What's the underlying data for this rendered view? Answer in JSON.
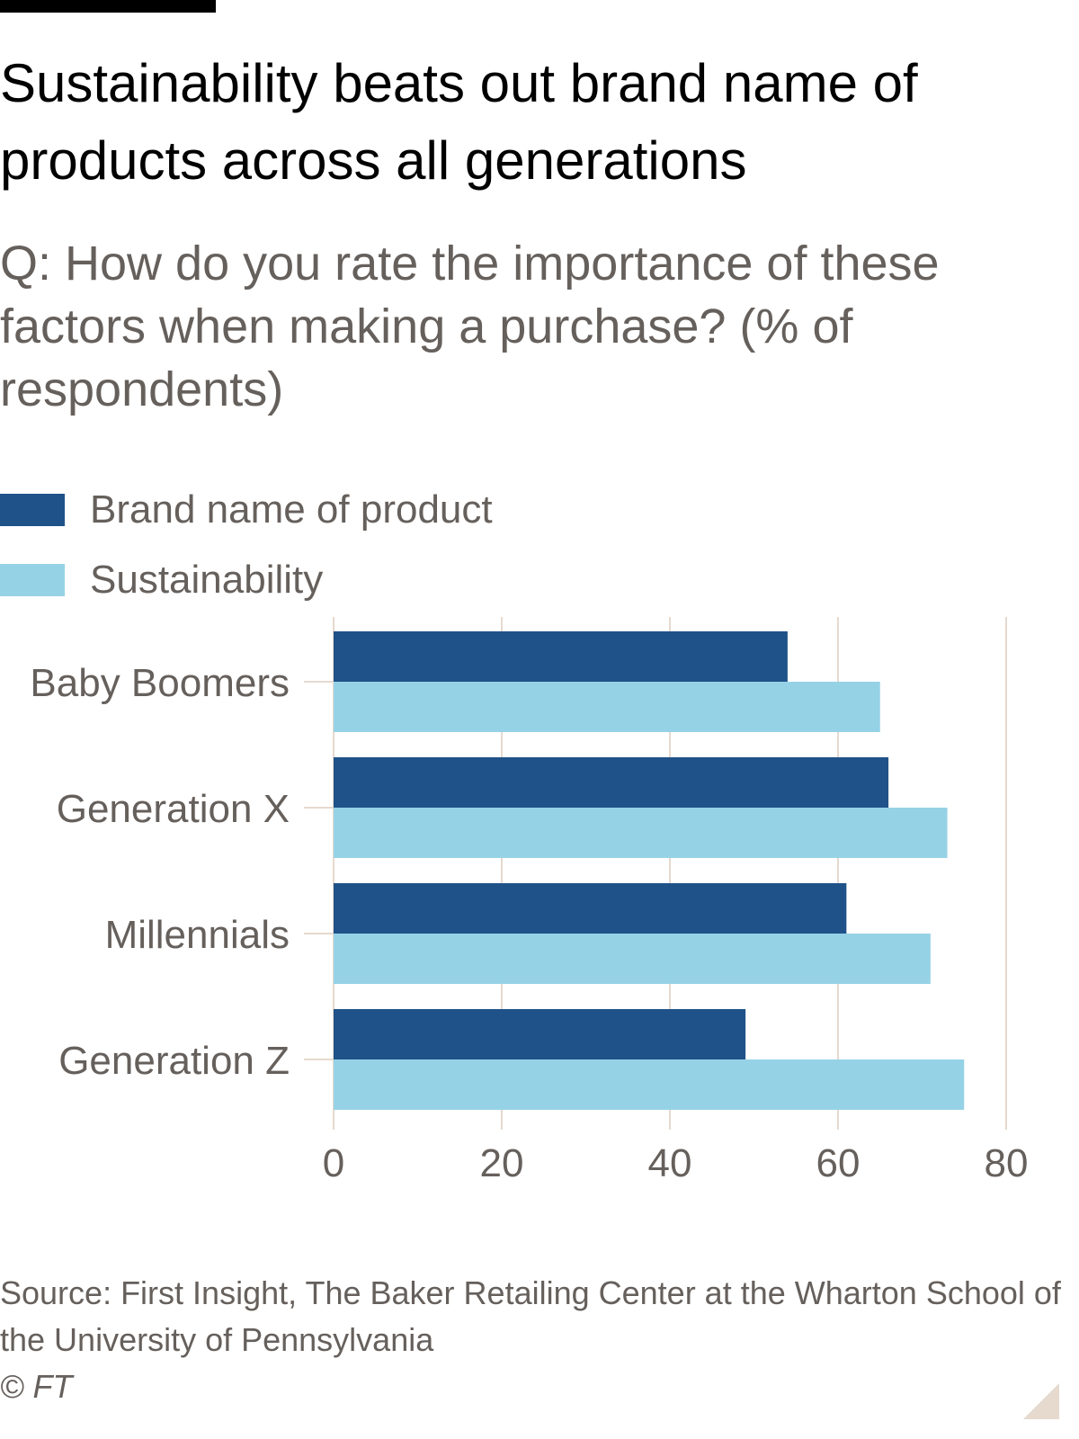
{
  "header": {
    "title": "Sustainability beats out brand name of products across all generations",
    "subtitle": "Q: How do you rate the importance of these factors when making a purchase? (% of respondents)"
  },
  "colors": {
    "brand": "#1f5289",
    "sustainability": "#96d2e6",
    "grid": "#e6d9ce",
    "text_muted": "#66605c"
  },
  "chart_data": {
    "type": "bar",
    "orientation": "horizontal",
    "categories": [
      "Baby Boomers",
      "Generation X",
      "Millennials",
      "Generation Z"
    ],
    "series": [
      {
        "name": "Brand name of product",
        "values": [
          54,
          66,
          61,
          49
        ]
      },
      {
        "name": "Sustainability",
        "values": [
          65,
          73,
          71,
          75
        ]
      }
    ],
    "xlim": [
      0,
      80
    ],
    "xticks": [
      0,
      20,
      40,
      60,
      80
    ],
    "grid": "vertical",
    "legend_position": "top-left"
  },
  "footer": {
    "source": "Source: First Insight, The Baker Retailing Center at the Wharton School of the University of Pennsylvania",
    "copyright": "© FT"
  }
}
